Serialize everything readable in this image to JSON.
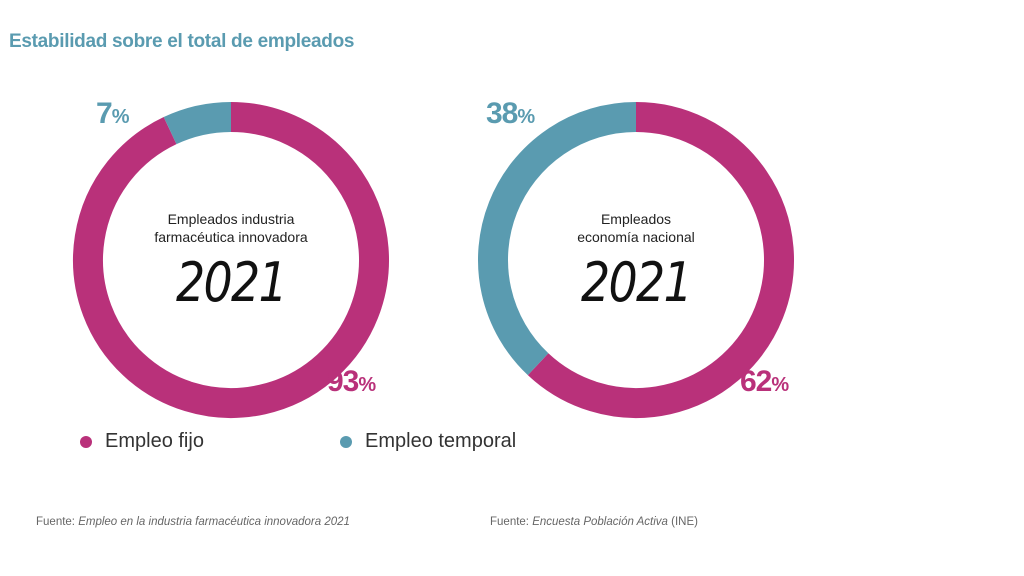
{
  "title": "Estabilidad sobre el total de empleados",
  "colors": {
    "fijo": "#b9317a",
    "temporal": "#5a9bb0"
  },
  "legend": [
    {
      "label": "Empleo fijo",
      "color": "#b9317a"
    },
    {
      "label": "Empleo temporal",
      "color": "#5a9bb0"
    }
  ],
  "chart_data": [
    {
      "type": "pie",
      "center_label_lines": [
        "Empleados industria",
        "farmacéutica innovadora"
      ],
      "center_year": "2021",
      "slices": [
        {
          "name": "Empleo fijo",
          "value": 93,
          "label": "93"
        },
        {
          "name": "Empleo temporal",
          "value": 7,
          "label": "7"
        }
      ],
      "source_prefix": "Fuente:",
      "source_title": "Empleo en la industria farmacéutica innovadora 2021",
      "source_suffix": ""
    },
    {
      "type": "pie",
      "center_label_lines": [
        "Empleados",
        "economía nacional"
      ],
      "center_year": "2021",
      "slices": [
        {
          "name": "Empleo fijo",
          "value": 62,
          "label": "62"
        },
        {
          "name": "Empleo temporal",
          "value": 38,
          "label": "38"
        }
      ],
      "source_prefix": "Fuente:",
      "source_title": "Encuesta Población Activa",
      "source_suffix": "(INE)"
    }
  ],
  "percent_sign": "%"
}
